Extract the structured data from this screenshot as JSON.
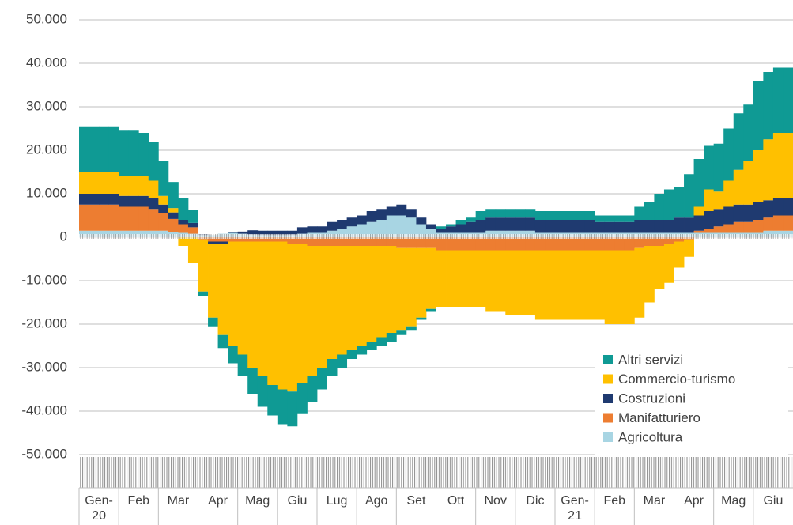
{
  "chart_data": {
    "type": "bar",
    "stacked": true,
    "grid": true,
    "legend": "lower right",
    "ylim": [
      -50000,
      50000
    ],
    "yticks": [
      {
        "value": -50000,
        "label": "-50.000"
      },
      {
        "value": -40000,
        "label": "-40.000"
      },
      {
        "value": -30000,
        "label": "-30.000"
      },
      {
        "value": -20000,
        "label": "-20.000"
      },
      {
        "value": -10000,
        "label": "-10.000"
      },
      0,
      {
        "value": 10000,
        "label": "10.000"
      },
      {
        "value": 20000,
        "label": "20.000"
      },
      {
        "value": 30000,
        "label": "30.000"
      },
      {
        "value": 40000,
        "label": "40.000"
      },
      {
        "value": 50000,
        "label": "50.000"
      }
    ],
    "categories": [
      "Gen-20",
      null,
      null,
      null,
      "Feb",
      null,
      null,
      null,
      "Mar",
      null,
      null,
      null,
      "Apr",
      null,
      null,
      null,
      "Mag",
      null,
      null,
      null,
      "Giu",
      null,
      null,
      null,
      "Lug",
      null,
      null,
      null,
      "Ago",
      null,
      null,
      null,
      "Set",
      null,
      null,
      null,
      "Ott",
      null,
      null,
      null,
      "Nov",
      null,
      null,
      null,
      "Dic",
      null,
      null,
      null,
      "Gen-21",
      null,
      null,
      null,
      "Feb",
      null,
      null,
      null,
      "Mar",
      null,
      null,
      null,
      "Apr",
      null,
      null,
      null,
      "Mag",
      null,
      null,
      null,
      "Giu",
      null,
      null,
      null
    ],
    "series": [
      {
        "name": "Altri servizi",
        "color": "#0f9a94",
        "values": [
          10500,
          10500,
          10500,
          10500,
          10500,
          10500,
          10000,
          9000,
          8000,
          6000,
          5000,
          3000,
          -1000,
          -2000,
          -3000,
          -4000,
          -5000,
          -6000,
          -7000,
          -7000,
          -8000,
          -8000,
          -7000,
          -6000,
          -5000,
          -4000,
          -3000,
          -2000,
          -2000,
          -2000,
          -2000,
          -2000,
          -1000,
          -1000,
          -500,
          -500,
          500,
          500,
          1000,
          1000,
          2000,
          2000,
          2000,
          2000,
          2000,
          2000,
          2000,
          2000,
          2000,
          2000,
          2000,
          2000,
          1500,
          1500,
          1500,
          1500,
          3000,
          4000,
          6000,
          7000,
          7000,
          10000,
          11000,
          10000,
          11000,
          12000,
          13000,
          13000,
          16000,
          15500,
          15000,
          15000
        ]
      },
      {
        "name": "Commercio-turismo",
        "color": "#ffc000",
        "values": [
          5000,
          5000,
          5000,
          5000,
          4500,
          4500,
          4500,
          4000,
          2000,
          1000,
          -2000,
          -6000,
          -12000,
          -17000,
          -21000,
          -24000,
          -26000,
          -29000,
          -31000,
          -33000,
          -34000,
          -34000,
          -32000,
          -30000,
          -28000,
          -26000,
          -25000,
          -24000,
          -23000,
          -22000,
          -21000,
          -20000,
          -19000,
          -18000,
          -16000,
          -14000,
          -13000,
          -13000,
          -13000,
          -13000,
          -13000,
          -14000,
          -14000,
          -15000,
          -15000,
          -15000,
          -16000,
          -16000,
          -16000,
          -16000,
          -16000,
          -16000,
          -16000,
          -17000,
          -17000,
          -17000,
          -16000,
          -13000,
          -10000,
          -9000,
          -6000,
          -4000,
          2000,
          5000,
          4000,
          6000,
          8000,
          10000,
          12000,
          14000,
          15000,
          15000
        ]
      },
      {
        "name": "Costruzioni",
        "color": "#1f3a70",
        "values": [
          2500,
          2500,
          2500,
          2500,
          2500,
          2500,
          2500,
          2500,
          2000,
          1500,
          1000,
          1000,
          200,
          -500,
          -500,
          200,
          500,
          1000,
          1000,
          1000,
          1000,
          1000,
          1500,
          1500,
          1500,
          2000,
          2000,
          2000,
          2000,
          2500,
          2500,
          2000,
          2500,
          2000,
          1500,
          1000,
          1000,
          1500,
          2000,
          2500,
          3000,
          3000,
          3000,
          3000,
          3000,
          3000,
          3000,
          3000,
          3000,
          3000,
          3000,
          3000,
          2500,
          2500,
          2500,
          2500,
          3000,
          3000,
          3000,
          3000,
          3500,
          3500,
          3500,
          4000,
          4000,
          4000,
          4000,
          4000,
          4000,
          4000,
          4000,
          4000
        ]
      },
      {
        "name": "Manifatturiero",
        "color": "#ed7d31",
        "values": [
          6000,
          6000,
          6000,
          6000,
          5500,
          5500,
          5500,
          5000,
          4000,
          3000,
          2000,
          1500,
          -500,
          -1000,
          -1000,
          -1000,
          -1000,
          -1000,
          -1000,
          -1000,
          -1000,
          -1500,
          -1500,
          -2000,
          -2000,
          -2000,
          -2000,
          -2000,
          -2000,
          -2000,
          -2000,
          -2000,
          -2500,
          -2500,
          -2500,
          -2500,
          -3000,
          -3000,
          -3000,
          -3000,
          -3000,
          -3000,
          -3000,
          -3000,
          -3000,
          -3000,
          -3000,
          -3000,
          -3000,
          -3000,
          -3000,
          -3000,
          -3000,
          -3000,
          -3000,
          -3000,
          -2500,
          -2000,
          -2000,
          -1500,
          -1000,
          -500,
          500,
          1000,
          1500,
          2000,
          2500,
          2500,
          3000,
          3000,
          3500,
          3500
        ]
      },
      {
        "name": "Agricoltura",
        "color": "#a8d5e3",
        "values": [
          1500,
          1500,
          1500,
          1500,
          1500,
          1500,
          1500,
          1500,
          1500,
          1200,
          1000,
          800,
          500,
          500,
          800,
          1000,
          800,
          600,
          500,
          500,
          500,
          500,
          800,
          1000,
          1000,
          1500,
          2000,
          2500,
          3000,
          3500,
          4000,
          5000,
          5000,
          4500,
          3000,
          2000,
          1000,
          1000,
          1000,
          1000,
          1000,
          1500,
          1500,
          1500,
          1500,
          1500,
          1000,
          1000,
          1000,
          1000,
          1000,
          1000,
          1000,
          1000,
          1000,
          1000,
          1000,
          1000,
          1000,
          1000,
          1000,
          1000,
          1000,
          1000,
          1000,
          1000,
          1000,
          1000,
          1000,
          1500,
          1500,
          1500
        ]
      }
    ]
  }
}
